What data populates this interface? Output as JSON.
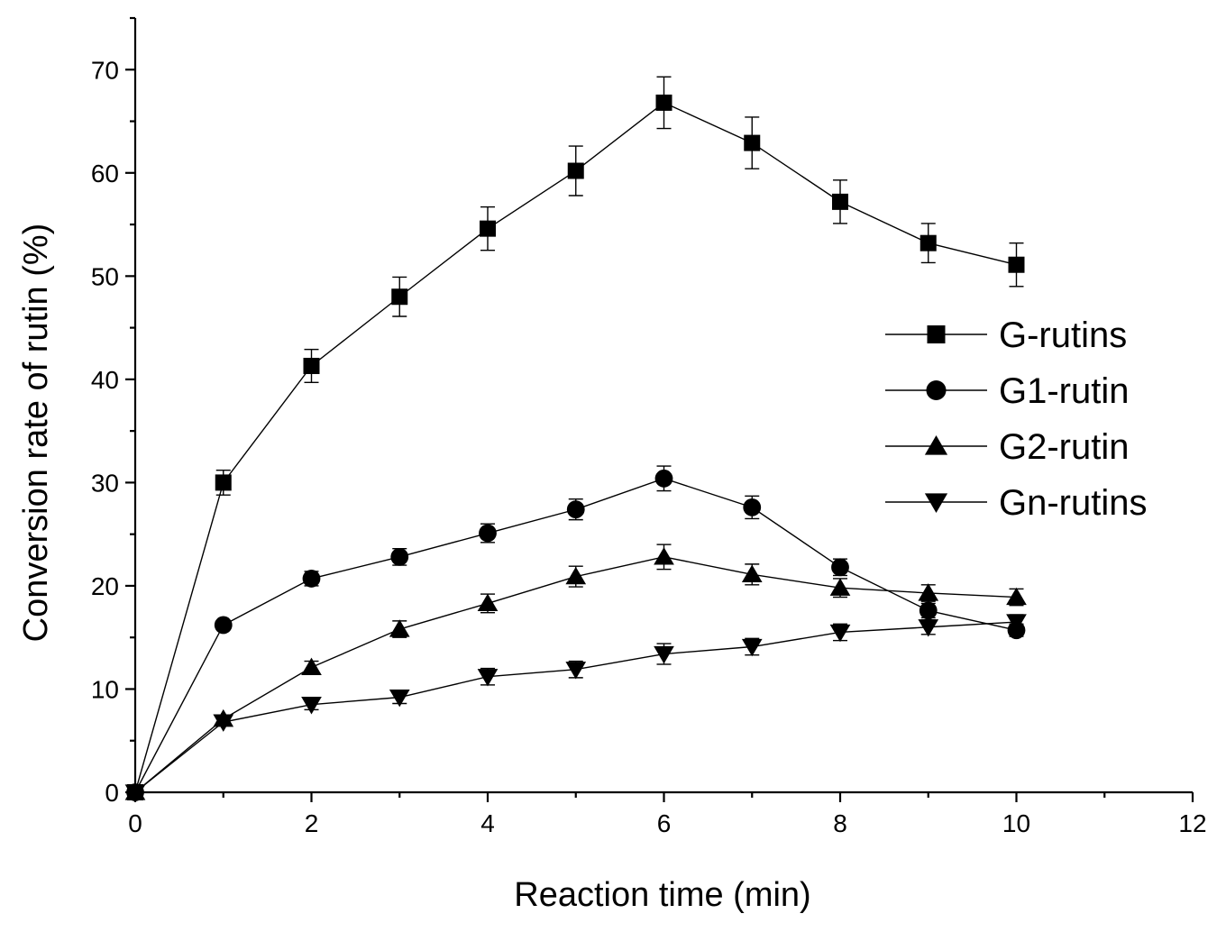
{
  "chart_data": {
    "type": "line",
    "title": "",
    "xlabel": "Reaction time (min)",
    "ylabel": "Conversion rate of rutin (%)",
    "xlim": [
      0,
      12
    ],
    "ylim": [
      0,
      75
    ],
    "xticks": [
      0,
      2,
      4,
      6,
      8,
      10,
      12
    ],
    "xtick_labels": [
      "0",
      "2",
      "4",
      "6",
      "8",
      "10",
      "12"
    ],
    "yticks": [
      0,
      10,
      20,
      30,
      40,
      50,
      60,
      70
    ],
    "ytick_labels": [
      "0",
      "10",
      "20",
      "30",
      "40",
      "50",
      "60",
      "70"
    ],
    "grid": false,
    "legend_position": "right",
    "x": [
      0,
      1,
      2,
      3,
      4,
      5,
      6,
      7,
      8,
      9,
      10
    ],
    "series": [
      {
        "name": "G-rutins",
        "marker": "square",
        "values": [
          0,
          30.0,
          41.3,
          48.0,
          54.6,
          60.2,
          66.8,
          62.9,
          57.2,
          53.2,
          51.1
        ],
        "errors": [
          0,
          1.2,
          1.6,
          1.9,
          2.1,
          2.4,
          2.5,
          2.5,
          2.1,
          1.9,
          2.1
        ]
      },
      {
        "name": "G1-rutin",
        "marker": "circle",
        "values": [
          0,
          16.2,
          20.7,
          22.8,
          25.1,
          27.4,
          30.4,
          27.6,
          21.8,
          17.6,
          15.7
        ],
        "errors": [
          0,
          0.4,
          0.7,
          0.8,
          0.9,
          1.0,
          1.2,
          1.1,
          0.8,
          0.7,
          0.6
        ]
      },
      {
        "name": "G2-rutin",
        "marker": "triangle-up",
        "values": [
          0,
          7.1,
          12.1,
          15.8,
          18.3,
          20.9,
          22.8,
          21.1,
          19.8,
          19.3,
          18.9
        ],
        "errors": [
          0,
          0.3,
          0.6,
          0.8,
          0.9,
          1.0,
          1.2,
          1.0,
          0.9,
          0.8,
          0.8
        ]
      },
      {
        "name": "Gn-rutins",
        "marker": "triangle-down",
        "values": [
          0,
          6.8,
          8.5,
          9.2,
          11.2,
          11.9,
          13.4,
          14.1,
          15.5,
          16.0,
          16.5
        ],
        "errors": [
          0,
          0.3,
          0.5,
          0.6,
          0.8,
          0.8,
          1.0,
          0.8,
          0.8,
          0.7,
          0.7
        ]
      }
    ]
  }
}
